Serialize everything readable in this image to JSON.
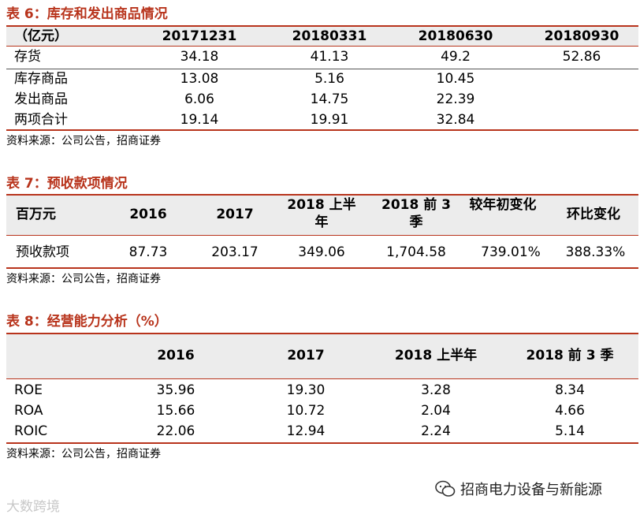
{
  "table6": {
    "title": "表 6：库存和发出商品情况",
    "headers": [
      "（亿元）",
      "20171231",
      "20180331",
      "20180630",
      "20180930"
    ],
    "rows": [
      [
        "存货",
        "34.18",
        "41.13",
        "49.2",
        "52.86"
      ],
      [
        "库存商品",
        "13.08",
        "5.16",
        "10.45",
        ""
      ],
      [
        "发出商品",
        "6.06",
        "14.75",
        "22.39",
        ""
      ],
      [
        "两项合计",
        "19.14",
        "19.91",
        "32.84",
        ""
      ]
    ],
    "source": "资料来源：公司公告，招商证券"
  },
  "table7": {
    "title": "表 7：预收款项情况",
    "headers": [
      "百万元",
      "2016",
      "2017",
      "2018 上半年",
      "2018 前 3 季",
      "较年初变化",
      "环比变化"
    ],
    "rows": [
      [
        "预收款项",
        "87.73",
        "203.17",
        "349.06",
        "1,704.58",
        "739.01%",
        "388.33%"
      ]
    ],
    "source": "资料来源：公司公告，招商证券"
  },
  "table8": {
    "title": "表 8：经营能力分析（%）",
    "headers": [
      "",
      "2016",
      "2017",
      "2018 上半年",
      "2018 前 3 季"
    ],
    "rows": [
      [
        "ROE",
        "35.96",
        "19.30",
        "3.28",
        "8.34"
      ],
      [
        "ROA",
        "15.66",
        "10.72",
        "2.04",
        "4.66"
      ],
      [
        "ROIC",
        "22.06",
        "12.94",
        "2.24",
        "5.14"
      ]
    ],
    "source": "资料来源：公司公告，招商证券"
  },
  "watermarks": {
    "left": "大数跨境",
    "right": "招商电力设备与新能源"
  },
  "colors": {
    "accent": "#b8341c",
    "header_bg": "#ececec"
  }
}
